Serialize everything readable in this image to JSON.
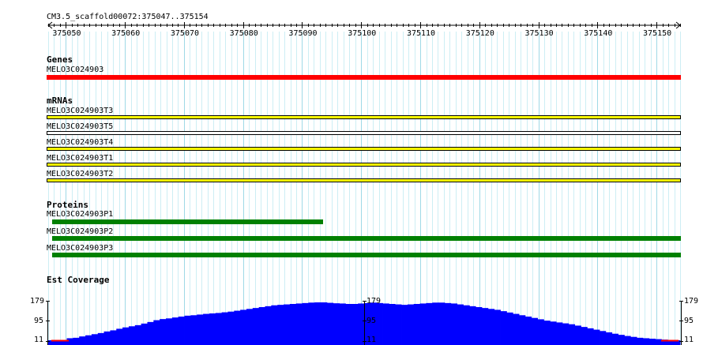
{
  "browser": {
    "region": "CM3.5_scaffold00072:375047..375154",
    "ruler": {
      "ticks": [
        "375050",
        "375060",
        "375070",
        "375080",
        "375090",
        "375100",
        "375110",
        "375120",
        "375130",
        "375140",
        "375150"
      ],
      "start": 375047,
      "end": 375154
    },
    "tracks": {
      "genes": {
        "title": "Genes",
        "features": [
          {
            "name": "MELO3C024903",
            "color": "#ff0000"
          }
        ]
      },
      "mrnas": {
        "title": "mRNAs",
        "features": [
          {
            "name": "MELO3C024903T3",
            "color": "#ffff00"
          },
          {
            "name": "MELO3C024903T5",
            "color": "#ffffff"
          },
          {
            "name": "MELO3C024903T4",
            "color": "#ffff00"
          },
          {
            "name": "MELO3C024903T1",
            "color": "#ffff00"
          },
          {
            "name": "MELO3C024903T2",
            "color": "#ffff00"
          }
        ]
      },
      "proteins": {
        "title": "Proteins",
        "features": [
          {
            "name": "MELO3C024903P1",
            "color": "#008000",
            "end_position": 375093
          },
          {
            "name": "MELO3C024903P2",
            "color": "#008000",
            "end_position": 375154
          },
          {
            "name": "MELO3C024903P3",
            "color": "#008000",
            "end_position": 375154
          }
        ]
      },
      "est_coverage": {
        "title": "Est Coverage",
        "y_labels": {
          "max": "179",
          "mid": "95",
          "min": "11"
        },
        "fill_color": "#0000ff",
        "coverage_values": [
          11,
          11,
          11,
          20,
          22,
          28,
          33,
          38,
          43,
          50,
          55,
          62,
          68,
          73,
          78,
          85,
          92,
          100,
          105,
          108,
          112,
          116,
          120,
          122,
          125,
          128,
          130,
          132,
          135,
          138,
          142,
          146,
          150,
          154,
          158,
          162,
          166,
          168,
          170,
          172,
          174,
          176,
          178,
          179,
          179,
          177,
          175,
          174,
          172,
          172,
          174,
          176,
          178,
          176,
          174,
          172,
          170,
          168,
          170,
          172,
          174,
          176,
          178,
          178,
          176,
          174,
          170,
          166,
          162,
          158,
          154,
          150,
          146,
          140,
          134,
          128,
          122,
          116,
          110,
          104,
          98,
          94,
          90,
          86,
          82,
          76,
          70,
          64,
          58,
          52,
          46,
          40,
          35,
          30,
          26,
          22,
          20,
          18,
          16,
          14,
          12,
          11
        ]
      }
    }
  }
}
